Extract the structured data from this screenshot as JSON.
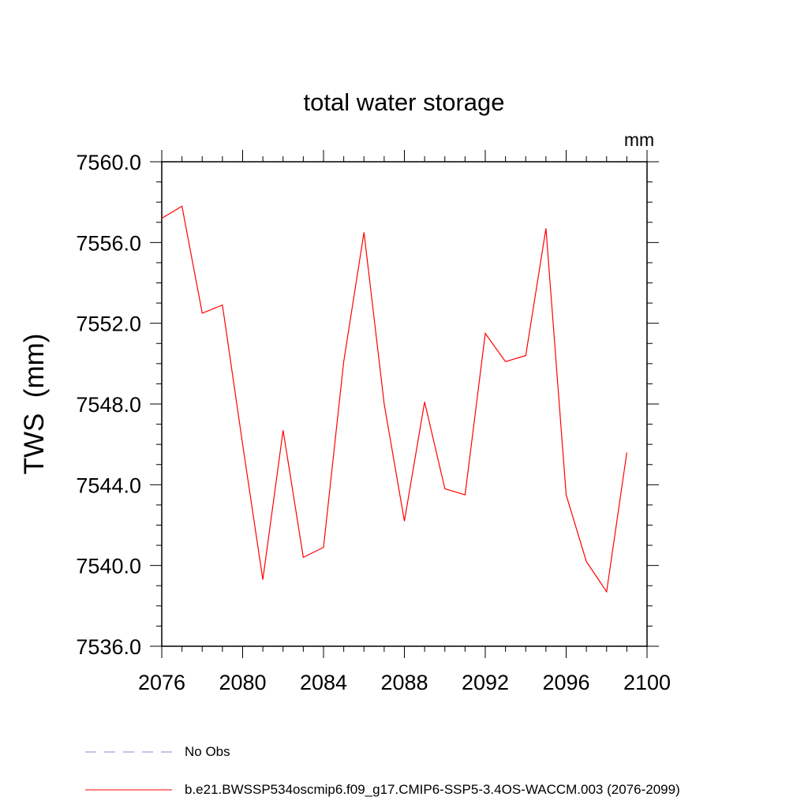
{
  "chart_data": {
    "type": "line",
    "title": "total water storage",
    "units": "mm",
    "xlabel": "",
    "ylabel": "TWS  (mm)",
    "xlim": [
      2076,
      2100
    ],
    "ylim": [
      7536.0,
      7560.0
    ],
    "x_ticks": [
      "2076",
      "2080",
      "2084",
      "2088",
      "2092",
      "2096",
      "2100"
    ],
    "y_ticks": [
      "7536.0",
      "7540.0",
      "7544.0",
      "7548.0",
      "7552.0",
      "7556.0",
      "7560.0"
    ],
    "legend": [
      {
        "label": "No Obs",
        "color": "#8c86c8",
        "style": "dashed"
      },
      {
        "label": "b.e21.BWSSP534oscmip6.f09_g17.CMIP6-SSP5-3.4OS-WACCM.003 (2076-2099)",
        "color": "#ff0000",
        "style": "solid"
      }
    ],
    "series": [
      {
        "name": "b.e21.BWSSP534oscmip6.f09_g17.CMIP6-SSP5-3.4OS-WACCM.003 (2076-2099)",
        "color": "#ff0000",
        "x": [
          2076,
          2077,
          2078,
          2079,
          2080,
          2081,
          2082,
          2083,
          2084,
          2085,
          2086,
          2087,
          2088,
          2089,
          2090,
          2091,
          2092,
          2093,
          2094,
          2095,
          2096,
          2097,
          2098,
          2099
        ],
        "values": [
          7557.2,
          7557.8,
          7552.5,
          7552.9,
          7546.0,
          7539.3,
          7546.7,
          7540.4,
          7540.9,
          7550.1,
          7556.5,
          7548.0,
          7542.2,
          7548.1,
          7543.8,
          7543.5,
          7551.5,
          7550.1,
          7550.4,
          7556.7,
          7543.5,
          7540.2,
          7538.7,
          7545.6
        ]
      }
    ]
  }
}
